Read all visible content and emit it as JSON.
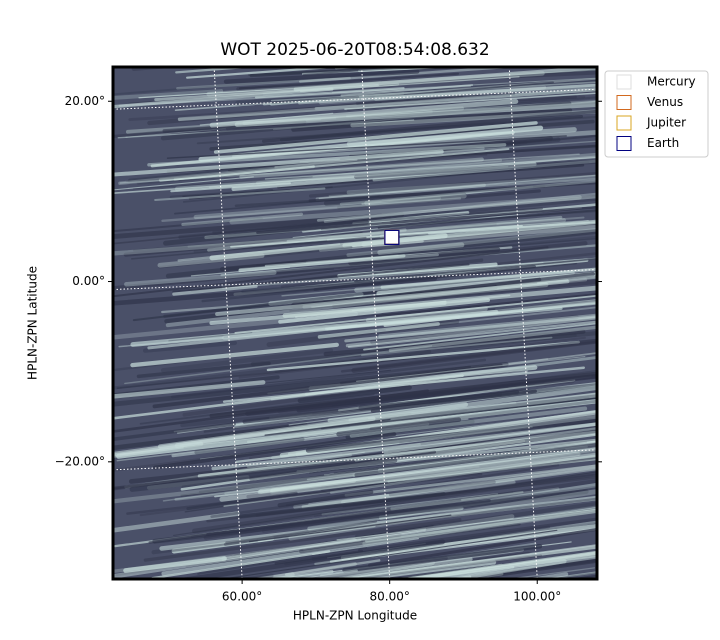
{
  "chart_data": {
    "type": "image",
    "title": "WOT 2025-06-20T08:54:08.632",
    "x_label": "HPLN-ZPN Longitude",
    "y_label": "HPLN-ZPN Latitude",
    "xlim": [
      42.5,
      108.1
    ],
    "ylim": [
      -33.0,
      23.8
    ],
    "xticks": [
      {
        "value": 60,
        "label": "60.00°"
      },
      {
        "value": 80,
        "label": "80.00°"
      },
      {
        "value": 100,
        "label": "100.00°"
      }
    ],
    "yticks": [
      {
        "value": -20,
        "label": "−20.00°"
      },
      {
        "value": 0,
        "label": "0.00°"
      },
      {
        "value": 20,
        "label": "20.00°"
      }
    ],
    "grid": true,
    "legend": "upper right outside",
    "series": [
      {
        "name": "Mercury",
        "color": "#dddddd",
        "x": [
          80.3
        ],
        "y": [
          4.9
        ]
      },
      {
        "name": "Venus",
        "color": "#d2691e",
        "x": [
          80.3
        ],
        "y": [
          4.9
        ]
      },
      {
        "name": "Jupiter",
        "color": "#daa520",
        "x": [
          80.3
        ],
        "y": [
          4.9
        ]
      },
      {
        "name": "Earth",
        "color": "#000080",
        "x": [
          80.3
        ],
        "y": [
          4.9
        ]
      }
    ]
  }
}
